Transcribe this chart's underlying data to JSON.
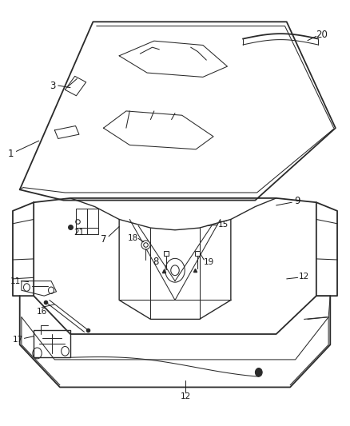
{
  "bg_color": "#ffffff",
  "line_color": "#2a2a2a",
  "label_color": "#1a1a1a",
  "fig_width": 4.38,
  "fig_height": 5.33,
  "dpi": 100
}
